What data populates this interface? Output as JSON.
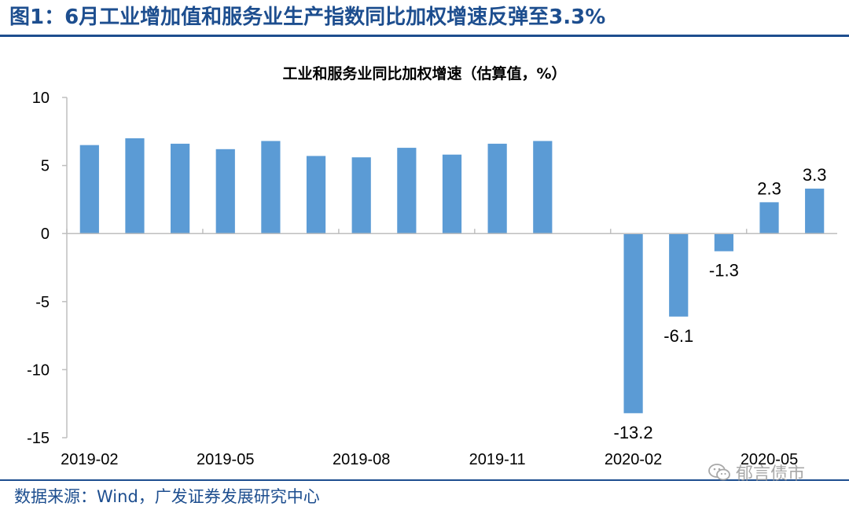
{
  "figure": {
    "title": "图1：6月工业增加值和服务业生产指数同比加权增速反弹至3.3%",
    "source": "数据来源：Wind，广发证券发展研究中心",
    "watermark": "郁言债市",
    "watermark_icon": "wechat-icon"
  },
  "colors": {
    "bar": "#5b9bd5",
    "accent": "#1d4e8f"
  },
  "chart_data": {
    "type": "bar",
    "title": "工业和服务业同比加权增速（估算值，%）",
    "xlabel": "",
    "ylabel": "",
    "categories": [
      "2019-02",
      "2019-03",
      "2019-04",
      "2019-05",
      "2019-06",
      "2019-07",
      "2019-08",
      "2019-09",
      "2019-10",
      "2019-11",
      "2019-12",
      "2020-01",
      "2020-02",
      "2020-03",
      "2020-04",
      "2020-05",
      "2020-06"
    ],
    "shown_x_ticks": [
      "2019-02",
      "2019-05",
      "2019-08",
      "2019-11",
      "2020-02",
      "2020-05"
    ],
    "values": [
      6.5,
      7.0,
      6.6,
      6.2,
      6.8,
      5.7,
      5.6,
      6.3,
      5.8,
      6.6,
      6.8,
      null,
      -13.2,
      -6.1,
      -1.3,
      2.3,
      3.3
    ],
    "data_labels": [
      null,
      null,
      null,
      null,
      null,
      null,
      null,
      null,
      null,
      null,
      null,
      null,
      "-13.2",
      "-6.1",
      "-1.3",
      "2.3",
      "3.3"
    ],
    "y_ticks": [
      "10",
      "5",
      "0",
      "-5",
      "-10",
      "-15"
    ],
    "ylim": [
      -15,
      10
    ],
    "grid": false,
    "legend": "none"
  }
}
